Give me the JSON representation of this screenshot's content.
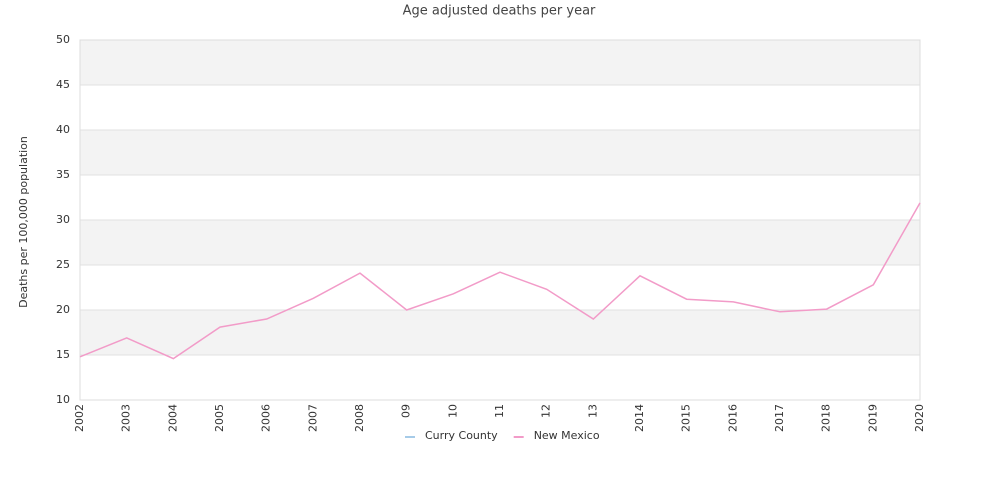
{
  "chart_data": {
    "type": "line",
    "title": "Age adjusted deaths per year",
    "y_label": "Deaths per 100,000 population",
    "categories": [
      "2002",
      "2003",
      "2004",
      "2005",
      "2006",
      "2007",
      "2008",
      "09",
      "10",
      "11",
      "12",
      "13",
      "2014",
      "2015",
      "2016",
      "2017",
      "2018",
      "2019",
      "2020"
    ],
    "series": [
      {
        "name": "Curry County",
        "color": "#a6cbe8",
        "values": [
          null,
          null,
          null,
          null,
          null,
          null,
          null,
          null,
          null,
          null,
          null,
          null,
          null,
          null,
          null,
          null,
          null,
          null,
          null
        ]
      },
      {
        "name": "New Mexico",
        "color": "#f29bc8",
        "values": [
          14.8,
          16.9,
          14.6,
          18.1,
          19.0,
          21.3,
          24.1,
          20.0,
          21.8,
          24.2,
          22.3,
          19.0,
          23.8,
          21.2,
          20.9,
          19.8,
          20.1,
          22.8,
          31.9
        ]
      }
    ],
    "ylim": [
      10,
      50
    ],
    "yticks": [
      10,
      15,
      20,
      25,
      30,
      35,
      40,
      45,
      50
    ],
    "grid": true,
    "legend": "bottom"
  }
}
